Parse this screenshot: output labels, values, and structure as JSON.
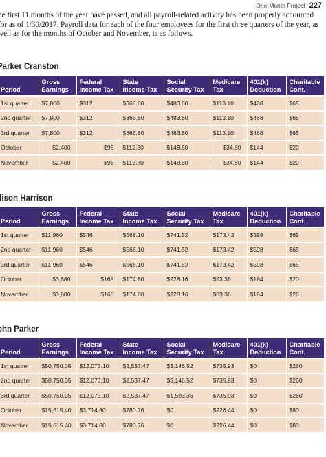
{
  "header": {
    "running_title": "One-Month Project",
    "page_number": "227"
  },
  "intro": "he first 11 months of the year have passed, and all payroll-related activity has been properly accounted for as of 1/30/2017. Payroll data for each of the four employees for the first three quarters of the year, as well as for the months of October and November, is as follows.",
  "columns": [
    "Period",
    "Gross\nEarnings",
    "Federal\nIncome Tax",
    "State\nIncome Tax",
    "Social\nSecurity Tax",
    "Medicare\nTax",
    "401(k)\nDeduction",
    "Charitable\nCont."
  ],
  "employees": [
    {
      "name": "Parker Cranston",
      "rows": [
        [
          "1st quarter",
          "$7,800",
          "$312",
          "$366.60",
          "$483.60",
          "$113.10",
          "$468",
          "$65"
        ],
        [
          "2nd quarter",
          "$7,800",
          "$312",
          "$366.60",
          "$483.60",
          "$113.10",
          "$468",
          "$65"
        ],
        [
          "3rd quarter",
          "$7,800",
          "$312",
          "$366.60",
          "$483.60",
          "$113.10",
          "$468",
          "$65"
        ],
        [
          "October",
          "$2,400",
          "$96",
          "$112.80",
          "$148.80",
          "$34.80",
          "$144",
          "$20"
        ],
        [
          "November",
          "$2,400",
          "$96",
          "$112.80",
          "$148.80",
          "$34.80",
          "$144",
          "$20"
        ]
      ]
    },
    {
      "name": "llison Harrison",
      "rows": [
        [
          "1st quarter",
          "$11,960",
          "$546",
          "$568.10",
          "$741.52",
          "$173.42",
          "$598",
          "$65"
        ],
        [
          "2nd quarter",
          "$11,960",
          "$546",
          "$568.10",
          "$741.52",
          "$173.42",
          "$598",
          "$65"
        ],
        [
          "3rd quarter",
          "$11,960",
          "$546",
          "$568.10",
          "$741.52",
          "$173.42",
          "$598",
          "$65"
        ],
        [
          "October",
          "$3,680",
          "$168",
          "$174.80",
          "$228.16",
          "$53.36",
          "$184",
          "$20"
        ],
        [
          "November",
          "$3,680",
          "$168",
          "$174.80",
          "$228.16",
          "$53.36",
          "$184",
          "$20"
        ]
      ]
    },
    {
      "name": "ohn Parker",
      "rows": [
        [
          "1st quarter",
          "$50,750.05",
          "$12,073.10",
          "$2,537.47",
          "$3,146.52",
          "$735.93",
          "$0",
          "$260"
        ],
        [
          "2nd quarter",
          "$50,750.05",
          "$12,073.10",
          "$2,537.47",
          "$3,146.52",
          "$735.93",
          "$0",
          "$260"
        ],
        [
          "3rd quarter",
          "$50,750.05",
          "$12,073.10",
          "$2,537.47",
          "$1,593.36",
          "$735.93",
          "$0",
          "$260"
        ],
        [
          "October",
          "$15,615.40",
          "$3,714.80",
          "$780.76",
          "$0",
          "$226.44",
          "$0",
          "$80"
        ],
        [
          "November",
          "$15,615.40",
          "$3,714.80",
          "$780.76",
          "$0",
          "$226.44",
          "$0",
          "$80"
        ]
      ]
    }
  ]
}
